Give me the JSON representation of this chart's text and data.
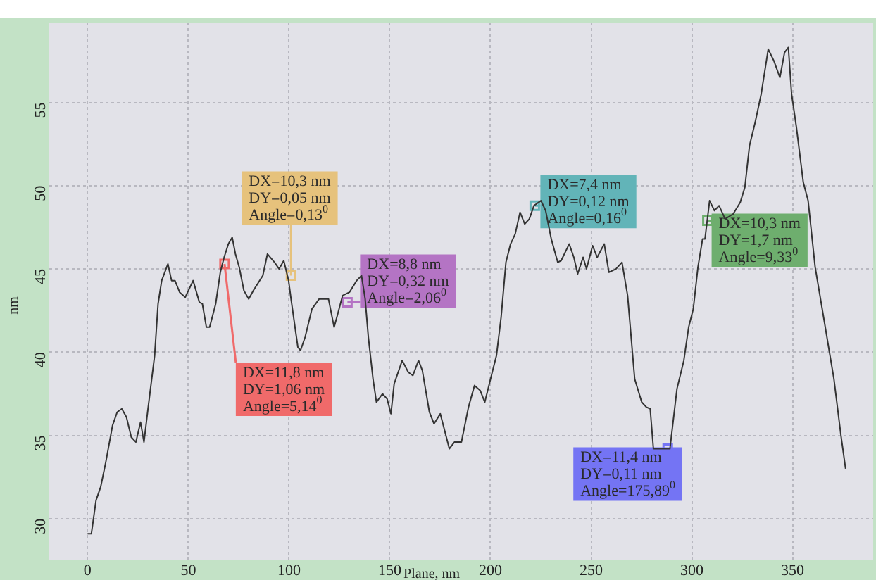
{
  "chart_data": {
    "type": "line",
    "xlabel": "Plane, nm",
    "ylabel": "nm",
    "x": [
      0,
      1.9,
      4.2,
      6.5,
      8.9,
      12.4,
      14.7,
      17,
      19.3,
      21.7,
      24,
      26.3,
      28,
      29.8,
      33.3,
      35,
      36.8,
      39.9,
      41.7,
      43.4,
      45.7,
      48.5,
      52.4,
      55.5,
      57,
      59,
      60.6,
      63.6,
      65.9,
      67.8,
      69.9,
      71.8,
      73.4,
      75.3,
      77.6,
      80,
      82.3,
      87,
      89.3,
      92.8,
      95.1,
      97.4,
      99.8,
      101,
      104.4,
      105.7,
      108,
      111.4,
      115,
      119.6,
      122.4,
      124.2,
      126.6,
      130,
      133.6,
      136,
      137.8,
      139.4,
      141.7,
      143.4,
      146.4,
      148.7,
      150.6,
      152.2,
      156.2,
      159.2,
      161.5,
      164.3,
      166.2,
      169.7,
      172,
      175.1,
      179.6,
      182.1,
      185.6,
      189.1,
      192.1,
      194.9,
      197.2,
      200.7,
      203,
      205.3,
      207.7,
      210,
      212.3,
      214.7,
      217,
      219.3,
      221.6,
      225.1,
      227.4,
      230.2,
      233.4,
      235.1,
      239.1,
      241.4,
      243.3,
      246,
      247.7,
      250.7,
      253,
      256.5,
      258.8,
      262.3,
      265.3,
      268.1,
      271.6,
      275.1,
      277.4,
      279.3,
      280.9,
      289.1,
      292.6,
      296,
      298.4,
      300.7,
      303,
      305.3,
      306.5,
      308.8,
      311.2,
      313.5,
      316.5,
      320.5,
      324,
      326.3,
      328.6,
      331.4,
      334.4,
      337.9,
      340.7,
      343.7,
      346,
      347.9,
      349.5,
      351.9,
      355.3,
      357.7,
      361.2,
      365.8,
      370.5,
      374,
      376.3
    ],
    "series": [
      {
        "color": "#333333",
        "values": [
          29.1,
          29.1,
          31.1,
          31.9,
          33.3,
          35.6,
          36.4,
          36.6,
          36.1,
          34.9,
          34.6,
          35.8,
          34.6,
          36.4,
          39.8,
          42.9,
          44.3,
          45.3,
          44.3,
          44.3,
          43.6,
          43.3,
          44.3,
          43,
          42.9,
          41.5,
          41.5,
          42.9,
          44.8,
          45.7,
          46.5,
          46.9,
          45.9,
          45.1,
          43.7,
          43.2,
          43.7,
          44.6,
          45.9,
          45.4,
          45,
          45.5,
          44.3,
          43.2,
          40.3,
          40.1,
          40.9,
          42.6,
          43.2,
          43.2,
          41.5,
          42.3,
          43.4,
          43.6,
          44.3,
          44.6,
          43.2,
          40.9,
          38.4,
          37,
          37.5,
          37.2,
          36.3,
          38.1,
          39.5,
          38.8,
          38.6,
          39.5,
          38.9,
          36.4,
          35.7,
          36.3,
          34.2,
          34.6,
          34.6,
          36.7,
          38,
          37.7,
          37,
          38.7,
          39.8,
          42.1,
          45.4,
          46.5,
          47.1,
          48.4,
          47.7,
          48,
          48.8,
          49.1,
          48.5,
          46.8,
          45.4,
          45.5,
          46.5,
          45.7,
          44.7,
          45.7,
          45,
          46.4,
          45.7,
          46.5,
          44.8,
          45,
          45.4,
          43.4,
          38.4,
          37,
          36.7,
          36.6,
          34.2,
          34.2,
          37.8,
          39.5,
          41.5,
          42.6,
          45.1,
          46.8,
          46.8,
          49.1,
          48.5,
          48.8,
          48,
          48.3,
          49,
          49.9,
          52.4,
          53.8,
          55.5,
          58.2,
          57.5,
          56.5,
          58,
          58.3,
          55.5,
          53.5,
          50.2,
          49.1,
          45.1,
          41.8,
          38.4,
          35,
          33
        ]
      }
    ],
    "xlim": [
      -19,
      390
    ],
    "ylim": [
      27.5,
      59.8
    ],
    "xticks": [
      0,
      50,
      100,
      150,
      200,
      250,
      300,
      350
    ],
    "yticks": [
      30,
      35,
      40,
      45,
      50,
      55
    ],
    "grid": true,
    "legend": false,
    "marker": "none",
    "line_style": "solid",
    "annotations": [
      {
        "text": "DX=10,3 nm\nDY=0,05 nm\nAngle=0,13$^{0}$",
        "x": 101,
        "y": 44.6
      },
      {
        "text": "DX=11,8 nm\nDY=1,06 nm\nAngle=5,14$^{0}$",
        "x": 68,
        "y": 45.3
      },
      {
        "text": "DX=8,8 nm\nDY=0,32 nm\nAngle=2,06$^{0}$",
        "x": 129,
        "y": 43
      },
      {
        "text": "DX=7,4 nm\nDY=0,12 nm\nAngle=0,16$^{0}$",
        "x": 222,
        "y": 48.8
      },
      {
        "text": "DX=10,3 nm\nDY=1,7 nm\nAngle=9,33$^{0}$",
        "x": 307.7,
        "y": 47.9
      },
      {
        "text": "DX=11,4 nm\nDY=0,11 nm\nAngle=175,89$^{0}$",
        "x": 288,
        "y": 34.2
      }
    ]
  }
}
